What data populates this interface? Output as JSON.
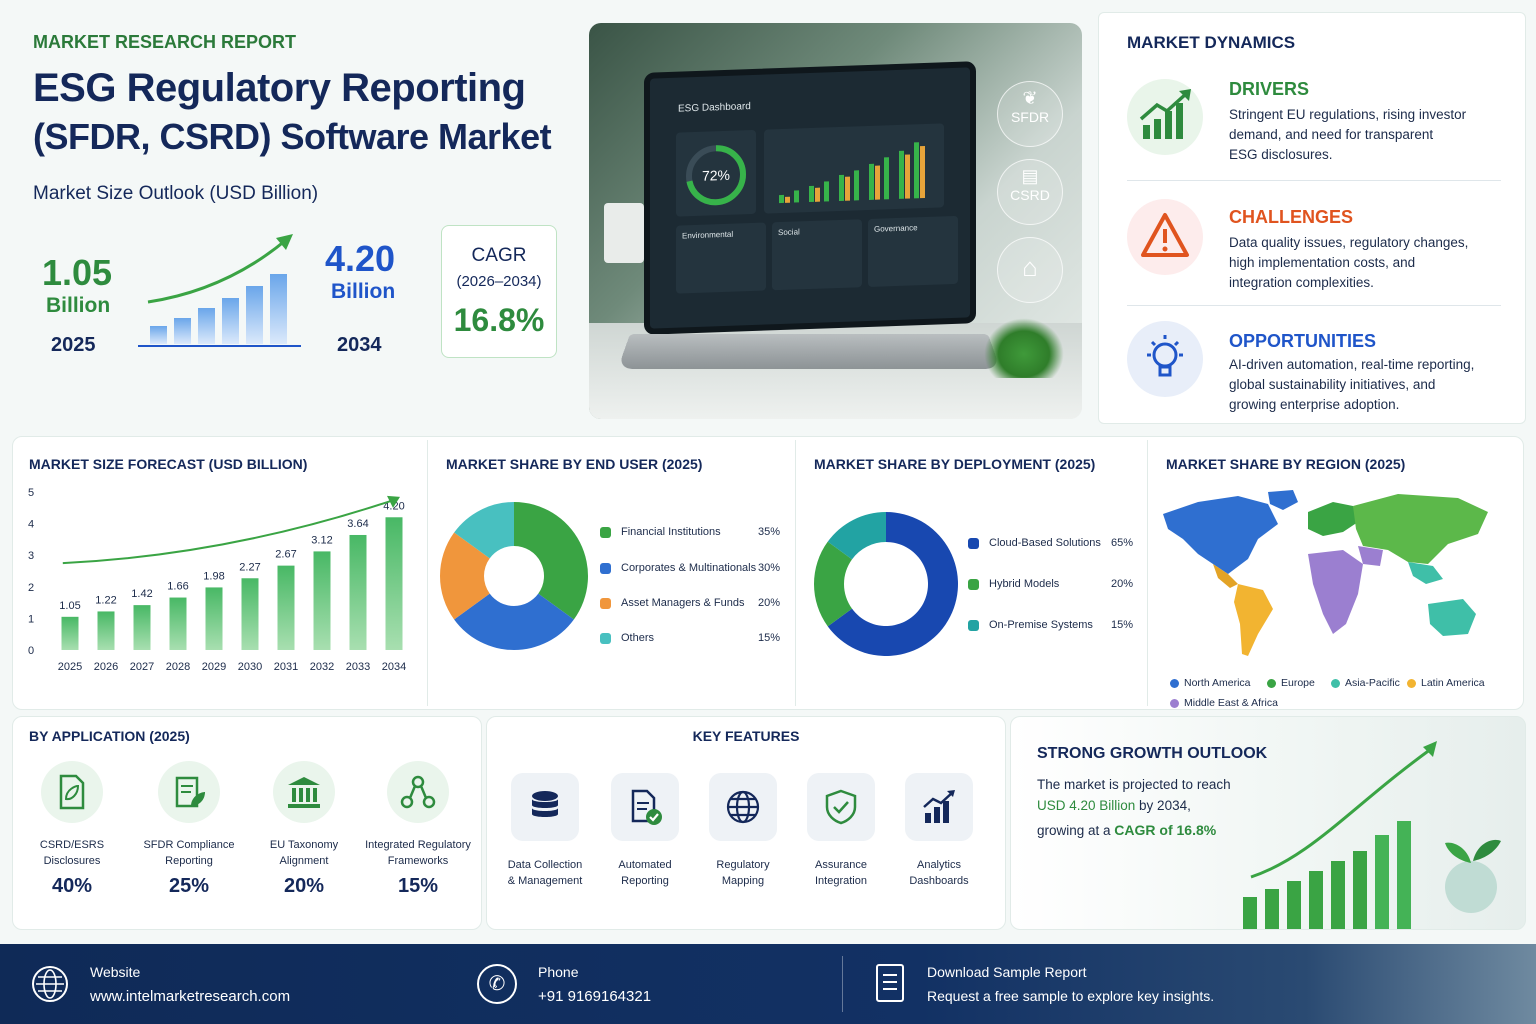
{
  "header": {
    "kicker": "MARKET RESEARCH REPORT",
    "title_line1": "ESG Regulatory Reporting",
    "title_line2": "(SFDR, CSRD) Software Market",
    "subtitle": "Market Size Outlook (USD Billion)",
    "start_value": "1.05",
    "start_unit": "Billion",
    "start_year": "2025",
    "end_value": "4.20",
    "end_unit": "Billion",
    "end_year": "2034",
    "cagr_label": "CAGR",
    "cagr_period": "(2026–2034)",
    "cagr_value": "16.8%"
  },
  "hero": {
    "screen_title": "ESG Dashboard",
    "gauge_value": "72%",
    "panel_labels": [
      "Environmental",
      "Social",
      "Governance"
    ],
    "badges": [
      "SFDR",
      "CSRD"
    ]
  },
  "dynamics": {
    "title": "MARKET DYNAMICS",
    "items": [
      {
        "heading": "DRIVERS",
        "text_lines": [
          "Stringent EU regulations, rising investor",
          "demand, and need for transparent",
          "ESG disclosures."
        ],
        "color": "#2e8b3e",
        "icon": "growth-chart-icon"
      },
      {
        "heading": "CHALLENGES",
        "text_lines": [
          "Data quality issues, regulatory changes,",
          "high implementation costs, and",
          "integration complexities."
        ],
        "color": "#e0541f",
        "icon": "warning-icon"
      },
      {
        "heading": "OPPORTUNITIES",
        "text_lines": [
          "AI-driven automation, real-time reporting,",
          "global sustainability initiatives, and",
          "growing enterprise adoption."
        ],
        "color": "#1f55c9",
        "icon": "lightbulb-icon"
      }
    ]
  },
  "forecast": {
    "title": "MARKET SIZE FORECAST (USD BILLION)"
  },
  "end_user": {
    "title": "MARKET SHARE BY END USER (2025)",
    "segments": [
      {
        "label": "Financial Institutions",
        "pct": "35%",
        "value": 35,
        "color": "#3aa444"
      },
      {
        "label": "Corporates & Multinationals",
        "pct": "30%",
        "value": 30,
        "color": "#2f6fd0"
      },
      {
        "label": "Asset Managers & Funds",
        "pct": "20%",
        "value": 20,
        "color": "#f0963c"
      },
      {
        "label": "Others",
        "pct": "15%",
        "value": 15,
        "color": "#48c0c0"
      }
    ]
  },
  "deployment": {
    "title": "MARKET SHARE BY DEPLOYMENT (2025)",
    "segments": [
      {
        "label": "Cloud-Based Solutions",
        "pct": "65%",
        "value": 65,
        "color": "#1848b0"
      },
      {
        "label": "Hybrid Models",
        "pct": "20%",
        "value": 20,
        "color": "#3aa444"
      },
      {
        "label": "On-Premise Systems",
        "pct": "15%",
        "value": 15,
        "color": "#22a3a3"
      }
    ]
  },
  "region": {
    "title": "MARKET SHARE BY REGION (2025)",
    "legend": [
      {
        "label": "North America",
        "color": "#2f6fd0"
      },
      {
        "label": "Europe",
        "color": "#3aa444"
      },
      {
        "label": "Asia-Pacific",
        "color": "#3fbfa8"
      },
      {
        "label": "Latin America",
        "color": "#f2b431"
      },
      {
        "label": "Middle East & Africa",
        "color": "#9b7fd0"
      }
    ]
  },
  "application": {
    "title": "BY APPLICATION (2025)",
    "items": [
      {
        "line1": "CSRD/ESRS",
        "line2": "Disclosures",
        "pct": "40%",
        "icon": "leaf-document-icon"
      },
      {
        "line1": "SFDR Compliance",
        "line2": "Reporting",
        "pct": "25%",
        "icon": "report-leaf-icon"
      },
      {
        "line1": "EU Taxonomy",
        "line2": "Alignment",
        "pct": "20%",
        "icon": "institution-icon"
      },
      {
        "line1": "Integrated Regulatory",
        "line2": "Frameworks",
        "pct": "15%",
        "icon": "network-nodes-icon"
      }
    ]
  },
  "features": {
    "title": "KEY FEATURES",
    "items": [
      {
        "line1": "Data Collection",
        "line2": "& Management",
        "icon": "database-icon"
      },
      {
        "line1": "Automated",
        "line2": "Reporting",
        "icon": "document-check-icon"
      },
      {
        "line1": "Regulatory",
        "line2": "Mapping",
        "icon": "globe-icon"
      },
      {
        "line1": "Assurance",
        "line2": "Integration",
        "icon": "shield-check-icon"
      },
      {
        "line1": "Analytics",
        "line2": "Dashboards",
        "icon": "analytics-chart-icon"
      }
    ]
  },
  "outlook": {
    "title": "STRONG GROWTH OUTLOOK",
    "line1": "The market is projected to reach",
    "line2_value": "USD 4.20 Billion",
    "line2_rest": " by 2034,",
    "line3_pre": "growing at a ",
    "line3_value": "CAGR of 16.8%"
  },
  "footer": {
    "website_label": "Website",
    "website_value": "www.intelmarketresearch.com",
    "phone_label": "Phone",
    "phone_value": "+91 9169164321",
    "download_label": "Download Sample Report",
    "download_text": "Request a free sample to explore key insights."
  },
  "chart_data": {
    "type": "bar",
    "categories": [
      "2025",
      "2026",
      "2027",
      "2028",
      "2029",
      "2030",
      "2031",
      "2032",
      "2033",
      "2034"
    ],
    "values": [
      1.05,
      1.22,
      1.42,
      1.66,
      1.98,
      2.27,
      2.67,
      3.12,
      3.64,
      4.2
    ],
    "data_labels": [
      "1.05",
      "1.22",
      "1.42",
      "1.66",
      "1.98",
      "2.27",
      "2.67",
      "3.12",
      "3.64",
      "4.20"
    ],
    "yticks": [
      "0",
      "1",
      "2",
      "3",
      "4",
      "5"
    ],
    "ylim": [
      0,
      5
    ],
    "grid": false,
    "legend": "none"
  }
}
